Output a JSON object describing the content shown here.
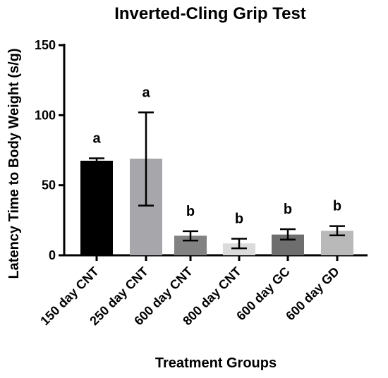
{
  "chart_data": {
    "type": "bar",
    "title": "Inverted-Cling Grip Test",
    "xlabel": "Treatment Groups",
    "ylabel": "Latency Time to Body Weight (s/g)",
    "ylim": [
      0,
      150
    ],
    "yticks": [
      0,
      50,
      100,
      150
    ],
    "grid": false,
    "categories": [
      "150 day CNT",
      "250 day CNT",
      "600 day CNT",
      "800 day CNT",
      "600 day GC",
      "600 day GD"
    ],
    "values": [
      67.5,
      69,
      14,
      8.5,
      14.8,
      17.5
    ],
    "error_low": [
      65.8,
      35.5,
      10.5,
      5.0,
      11.2,
      14.2
    ],
    "error_high": [
      69.2,
      102.0,
      17.2,
      11.8,
      18.6,
      20.8
    ],
    "significance": [
      "a",
      "a",
      "b",
      "b",
      "b",
      "b"
    ],
    "colors": [
      "#000000",
      "#a7a7ab",
      "#828282",
      "#dbdbdb",
      "#6e6e6e",
      "#b9b9b9"
    ]
  }
}
